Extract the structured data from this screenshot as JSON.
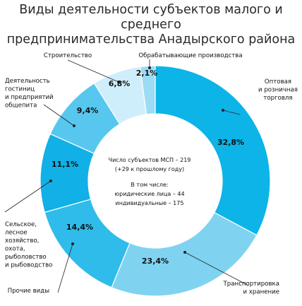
{
  "title": {
    "line1": "Виды деятельности субъектов малого и среднего",
    "line2": "предпринимательства Анадырского района"
  },
  "center": {
    "line1": "Число субъектов МСП – 219",
    "line2": "(+29 к прошлому году)",
    "line3": "В том числе:",
    "line4": "юридические лица – 44",
    "line5": "индивидуальные – 175"
  },
  "chart_data": {
    "type": "pie",
    "title": "Виды деятельности субъектов малого и среднего предпринимательства Анадырского района",
    "series": [
      {
        "label": [
          "Оптовая",
          "и розничная",
          "торговля"
        ],
        "value": 32.8,
        "value_label": "32,8%",
        "color": "#0cb4e8"
      },
      {
        "label": [
          "Транспортировка",
          "и хранение"
        ],
        "value": 23.4,
        "value_label": "23,4%",
        "color": "#7fd3f1"
      },
      {
        "label": [
          "Прочие виды"
        ],
        "value": 14.4,
        "value_label": "14,4%",
        "color": "#2fbcea"
      },
      {
        "label": [
          "Сельское,",
          "лесное",
          "хозяйство,",
          "охота,",
          "рыболовство",
          "и рыбоводство"
        ],
        "value": 11.1,
        "value_label": "11,1%",
        "color": "#11b0e6"
      },
      {
        "label": [
          "Деятельность",
          "гостиниц",
          "и предприятий",
          "общепита"
        ],
        "value": 9.4,
        "value_label": "9,4%",
        "color": "#57c7ef"
      },
      {
        "label": [
          "Строительство"
        ],
        "value": 6.8,
        "value_label": "6,8%",
        "color": "#cfeefb"
      },
      {
        "label": [
          "Обрабатывающие производства"
        ],
        "value": 2.1,
        "value_label": "2,1%",
        "color": "#9bdcf4"
      }
    ]
  }
}
